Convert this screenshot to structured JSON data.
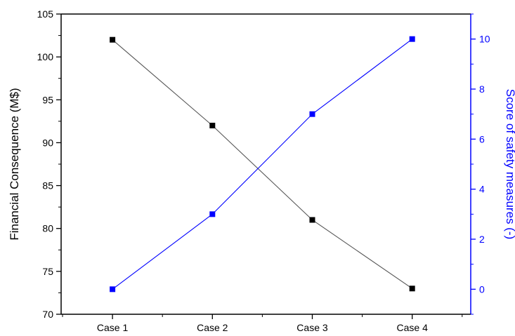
{
  "chart_data": {
    "type": "line",
    "categories": [
      "Case 1",
      "Case 2",
      "Case 3",
      "Case 4"
    ],
    "xlabel": "",
    "ylabel": "Financial Consequence (M$)",
    "ylabel_right": "Score of safety measures (-)",
    "ylim": [
      70,
      105
    ],
    "ylim_right": [
      -1,
      11
    ],
    "y_ticks": [
      70,
      75,
      80,
      85,
      90,
      95,
      100,
      105
    ],
    "y_ticks_right": [
      0,
      2,
      4,
      6,
      8,
      10
    ],
    "grid": false,
    "series": [
      {
        "axis": "left",
        "color": "#000000",
        "line_color": "#555555",
        "values": [
          102,
          92,
          81,
          73
        ]
      },
      {
        "axis": "right",
        "color": "#0000ff",
        "line_color": "#0000ff",
        "values": [
          0,
          3,
          7,
          10
        ]
      }
    ],
    "colors": {
      "left_axis": "#000000",
      "right_axis": "#0000ff"
    }
  }
}
